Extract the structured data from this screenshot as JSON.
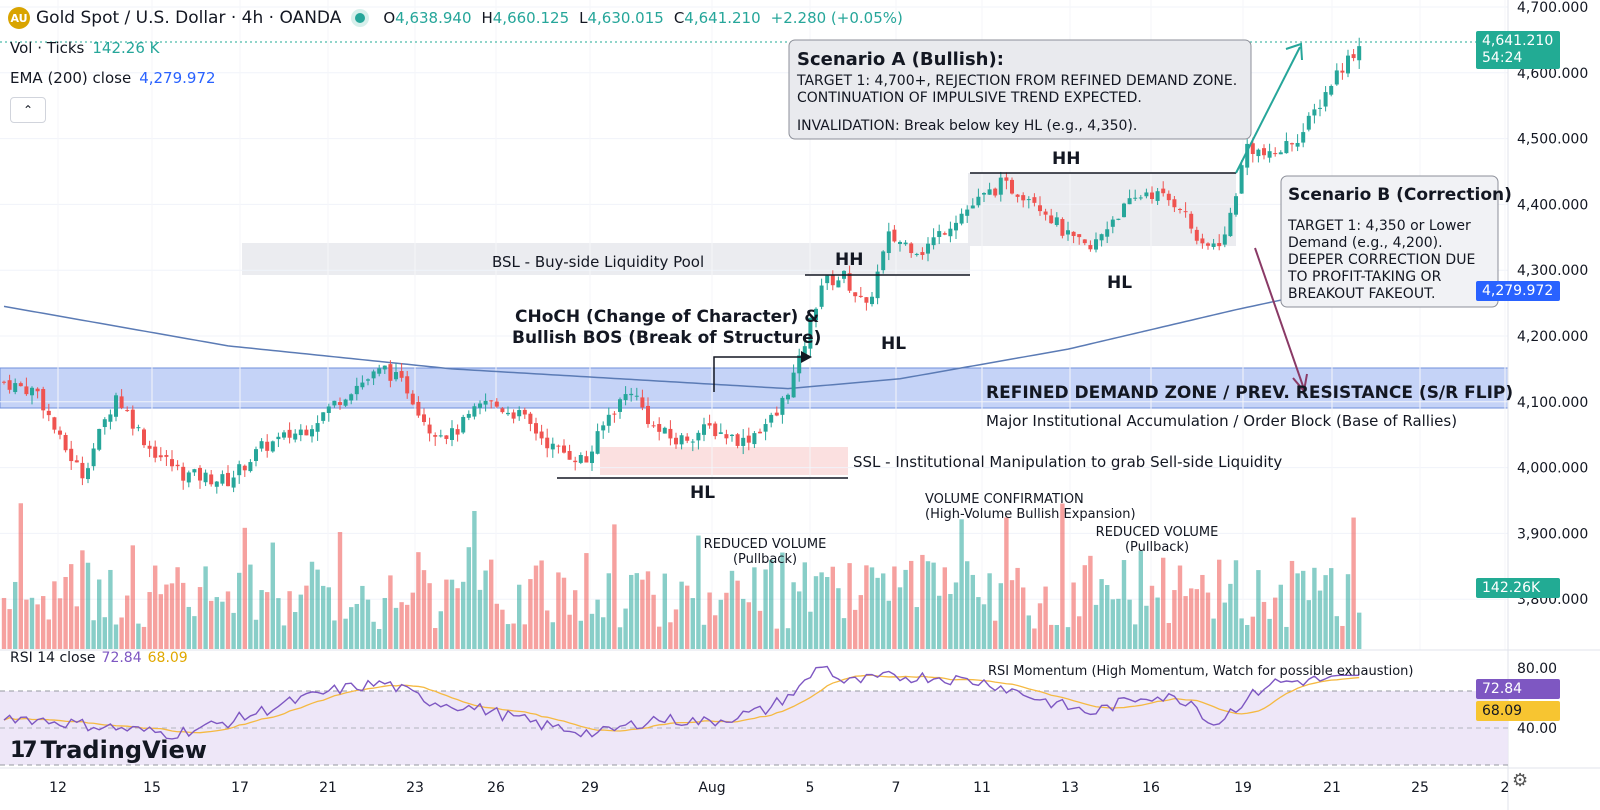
{
  "header": {
    "symbol_title": "Gold Spot / U.S. Dollar · 4h · OANDA",
    "logo_text": "AU",
    "ohlc": {
      "o_label": "O",
      "o": "4,638.940",
      "h_label": "H",
      "h": "4,660.125",
      "l_label": "L",
      "l": "4,630.015",
      "c_label": "C",
      "c": "4,641.210",
      "change": "+2.280 (+0.05%)"
    }
  },
  "indicators": {
    "vol_label": "Vol · Ticks",
    "vol_value": "142.26 K",
    "ema_label": "EMA (200) close",
    "ema_value": "4,279.972",
    "rsi_label": "RSI 14 close",
    "rsi_value": "72.84",
    "rsi_ma_value": "68.09"
  },
  "brand": {
    "name": "TradingView",
    "mark": "17"
  },
  "price_tags": {
    "last_price": "4,641.210",
    "countdown": "54:24",
    "ema": "4,279.972",
    "volume": "142.26K",
    "rsi": "72.84",
    "rsi_ma": "68.09"
  },
  "colors": {
    "up": "#26a69a",
    "down": "#ef5350",
    "ema": "#5b7bb5",
    "rsi": "#7e57c2",
    "rsi_ma": "#f5b942",
    "demand_zone": "#c5d3f7",
    "tag_green": "#22ab94",
    "tag_blue": "#2962ff",
    "tag_purple": "#7e57c2",
    "tag_yellow": "#f7c531"
  },
  "annotations": {
    "scenario_a_title": "Scenario A (Bullish):",
    "scenario_a_line1": "TARGET 1: 4,700+, REJECTION FROM REFINED DEMAND ZONE.",
    "scenario_a_line2": "CONTINUATION OF IMPULSIVE TREND EXPECTED.",
    "scenario_a_line3": "INVALIDATION: Break below key HL (e.g., 4,350).",
    "scenario_b_title": "Scenario B (Correction)",
    "scenario_b_line1": "TARGET 1: 4,350 or Lower",
    "scenario_b_line2": "Demand (e.g., 4,200).",
    "scenario_b_line3": "DEEPER CORRECTION DUE",
    "scenario_b_line4": "TO PROFIT-TAKING OR",
    "scenario_b_line5": "BREAKOUT FAKEOUT.",
    "bsl": "BSL - Buy-side Liquidity Pool",
    "choch_line1": "CHoCH (Change of Character) &",
    "choch_line2": "Bullish BOS (Break of Structure)",
    "demand_zone": "REFINED DEMAND ZONE / PREV. RESISTANCE (S/R FLIP)",
    "demand_sub": "Major Institutional Accumulation / Order Block (Base of Rallies)",
    "ssl": "SSL - Institutional Manipulation to grab Sell-side Liquidity",
    "hh1": "HH",
    "hh2": "HH",
    "hl1": "HL",
    "hl2": "HL",
    "hl3": "HL",
    "vol_reduced1_line1": "REDUCED VOLUME",
    "vol_reduced1_line2": "(Pullback)",
    "vol_confirm_line1": "VOLUME CONFIRMATION",
    "vol_confirm_line2": "(High-Volume Bullish Expansion)",
    "vol_reduced2_line1": "REDUCED VOLUME",
    "vol_reduced2_line2": "(Pullback)",
    "rsi_note": "RSI Momentum (High Momentum, Watch for possible exhaustion)"
  },
  "chart_data": {
    "type": "candlestick",
    "timeframe": "4h",
    "price_axis": {
      "ticks": [
        3800,
        3900,
        4000,
        4100,
        4200,
        4300,
        4400,
        4500,
        4600,
        4700
      ],
      "tick_labels": [
        "3,800.000",
        "3,900.000",
        "4,000.000",
        "4,100.000",
        "4,200.000",
        "4,300.000",
        "4,400.000",
        "4,500.000",
        "4,600.000",
        "4,700.000"
      ],
      "range": [
        3740,
        4705
      ]
    },
    "rsi_axis": {
      "ticks": [
        40,
        80
      ],
      "tick_labels": [
        "40.00",
        "80.00"
      ],
      "range": [
        20,
        90
      ]
    },
    "x_axis": {
      "ticks": [
        "12",
        "15",
        "17",
        "21",
        "23",
        "26",
        "29",
        "Aug",
        "5",
        "7",
        "11",
        "13",
        "16",
        "19",
        "21",
        "25",
        "2"
      ]
    },
    "waypoints": [
      [
        0,
        4130
      ],
      [
        6,
        4115
      ],
      [
        10,
        4040
      ],
      [
        14,
        3990
      ],
      [
        20,
        4110
      ],
      [
        26,
        4030
      ],
      [
        32,
        3990
      ],
      [
        40,
        3980
      ],
      [
        46,
        4030
      ],
      [
        54,
        4060
      ],
      [
        62,
        4120
      ],
      [
        68,
        4150
      ],
      [
        72,
        4120
      ],
      [
        76,
        4060
      ],
      [
        80,
        4050
      ],
      [
        86,
        4100
      ],
      [
        92,
        4080
      ],
      [
        98,
        4030
      ],
      [
        104,
        4010
      ],
      [
        108,
        4080
      ],
      [
        112,
        4120
      ],
      [
        116,
        4060
      ],
      [
        120,
        4040
      ],
      [
        126,
        4060
      ],
      [
        132,
        4040
      ],
      [
        138,
        4080
      ],
      [
        142,
        4160
      ],
      [
        146,
        4280
      ],
      [
        150,
        4290
      ],
      [
        154,
        4240
      ],
      [
        158,
        4350
      ],
      [
        164,
        4330
      ],
      [
        170,
        4380
      ],
      [
        178,
        4430
      ],
      [
        184,
        4410
      ],
      [
        190,
        4350
      ],
      [
        194,
        4330
      ],
      [
        198,
        4380
      ],
      [
        204,
        4420
      ],
      [
        210,
        4400
      ],
      [
        214,
        4330
      ],
      [
        218,
        4350
      ],
      [
        222,
        4490
      ],
      [
        226,
        4470
      ],
      [
        232,
        4510
      ],
      [
        238,
        4600
      ],
      [
        242,
        4641
      ]
    ],
    "rsi_waypoints": [
      [
        0,
        48
      ],
      [
        10,
        44
      ],
      [
        20,
        40
      ],
      [
        30,
        36
      ],
      [
        40,
        44
      ],
      [
        50,
        56
      ],
      [
        60,
        66
      ],
      [
        68,
        70
      ],
      [
        76,
        58
      ],
      [
        86,
        52
      ],
      [
        96,
        42
      ],
      [
        106,
        36
      ],
      [
        116,
        46
      ],
      [
        126,
        44
      ],
      [
        136,
        52
      ],
      [
        142,
        66
      ],
      [
        146,
        83
      ],
      [
        150,
        70
      ],
      [
        158,
        74
      ],
      [
        166,
        74
      ],
      [
        176,
        70
      ],
      [
        186,
        58
      ],
      [
        194,
        50
      ],
      [
        204,
        62
      ],
      [
        212,
        58
      ],
      [
        216,
        42
      ],
      [
        220,
        54
      ],
      [
        226,
        70
      ],
      [
        234,
        72
      ],
      [
        242,
        73
      ]
    ],
    "levels": {
      "demand_zone": [
        4100,
        4160
      ],
      "bsl_zone": [
        4300,
        4345
      ],
      "ssl_zone": [
        3995,
        4035
      ],
      "hh_level_1": 4300,
      "hh_level_2": 4450,
      "hl_level_1": 3995
    },
    "last_price": 4641.21,
    "ema200_last": 4279.972,
    "volume_last": "142.26K",
    "rsi_last": 72.84,
    "rsi_ma_last": 68.09
  }
}
